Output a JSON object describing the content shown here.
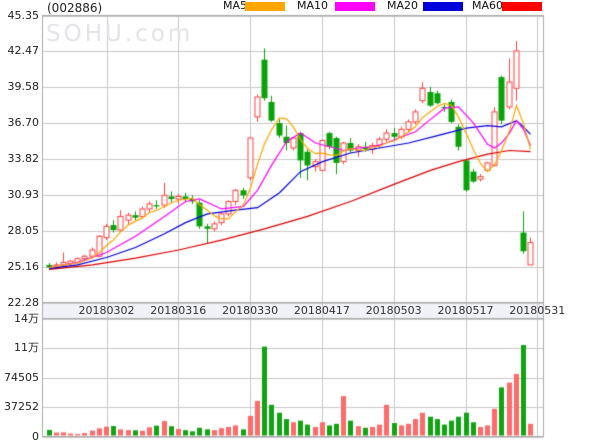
{
  "title": {
    "code": "(002886)"
  },
  "watermark": "SOHU.com",
  "legend": [
    {
      "label": "MA5",
      "color": "#ffa500"
    },
    {
      "label": "MA10",
      "color": "#ff00ff"
    },
    {
      "label": "MA20",
      "color": "#0000dd"
    },
    {
      "label": "MA60",
      "color": "#ff0000"
    }
  ],
  "chart_data": {
    "type": "candlestick+volume",
    "title": "(002886)",
    "price_axis": {
      "ticks": [
        "45.35",
        "42.47",
        "39.58",
        "36.70",
        "33.82",
        "30.93",
        "28.05",
        "25.16",
        "22.28"
      ],
      "max": 45.35,
      "min": 22.28
    },
    "volume_axis": {
      "ticks": [
        "14万",
        "11万",
        "74505",
        "37252",
        "0"
      ],
      "max": 149008,
      "min": 0
    },
    "dates": [
      "20180302",
      "20180316",
      "20180330",
      "20180417",
      "20180503",
      "20180517",
      "20180531"
    ],
    "grid": true,
    "candles_format": [
      "open",
      "high",
      "low",
      "close",
      "volume"
    ],
    "candles": [
      [
        25.3,
        25.45,
        24.9,
        25.1,
        8300
      ],
      [
        25.1,
        25.5,
        25.0,
        25.3,
        5000
      ],
      [
        25.2,
        26.3,
        25.1,
        25.5,
        5200
      ],
      [
        25.4,
        25.7,
        25.2,
        25.6,
        3700
      ],
      [
        25.5,
        25.9,
        25.4,
        25.8,
        3000
      ],
      [
        25.8,
        26.1,
        25.6,
        26.0,
        4500
      ],
      [
        26.0,
        26.7,
        25.9,
        26.5,
        7400
      ],
      [
        26.0,
        27.7,
        25.9,
        27.6,
        10300
      ],
      [
        27.5,
        28.6,
        27.3,
        28.4,
        12400
      ],
      [
        28.5,
        28.9,
        27.9,
        28.1,
        13200
      ],
      [
        28.1,
        29.7,
        28.0,
        29.2,
        9000
      ],
      [
        28.9,
        29.5,
        28.6,
        29.3,
        8100
      ],
      [
        29.3,
        29.6,
        28.9,
        29.1,
        7800
      ],
      [
        29.2,
        30.0,
        29.0,
        29.8,
        7200
      ],
      [
        29.8,
        30.4,
        29.5,
        30.2,
        11600
      ],
      [
        30.1,
        30.5,
        29.8,
        30.0,
        13700
      ],
      [
        30.1,
        31.9,
        29.9,
        30.9,
        19500
      ],
      [
        30.8,
        31.2,
        30.3,
        30.6,
        13000
      ],
      [
        30.6,
        31.0,
        30.2,
        30.8,
        9500
      ],
      [
        30.8,
        31.1,
        30.4,
        30.6,
        8000
      ],
      [
        30.6,
        30.9,
        30.2,
        30.4,
        6500
      ],
      [
        30.3,
        30.5,
        28.2,
        28.4,
        11000
      ],
      [
        28.4,
        28.6,
        27.0,
        28.2,
        9000
      ],
      [
        28.2,
        28.8,
        28.0,
        28.6,
        8000
      ],
      [
        28.7,
        29.5,
        28.5,
        29.4,
        10500
      ],
      [
        29.4,
        30.5,
        29.2,
        30.4,
        12000
      ],
      [
        30.4,
        31.4,
        30.1,
        31.3,
        14000
      ],
      [
        31.3,
        31.5,
        30.6,
        30.9,
        9000
      ],
      [
        32.3,
        35.6,
        32.1,
        35.5,
        26000
      ],
      [
        37.2,
        39.0,
        36.8,
        38.8,
        45000
      ],
      [
        41.8,
        42.7,
        38.5,
        38.7,
        113500
      ],
      [
        38.4,
        38.9,
        36.8,
        36.9,
        40000
      ],
      [
        36.7,
        37.0,
        35.5,
        35.7,
        30000
      ],
      [
        35.6,
        36.5,
        34.5,
        35.1,
        22000
      ],
      [
        34.7,
        35.6,
        34.5,
        35.5,
        18000
      ],
      [
        35.9,
        36.0,
        32.3,
        33.7,
        20000
      ],
      [
        34.4,
        34.6,
        32.1,
        33.3,
        15000
      ],
      [
        33.2,
        33.8,
        32.8,
        33.6,
        12000
      ],
      [
        32.9,
        35.4,
        32.8,
        35.3,
        18000
      ],
      [
        35.9,
        36.0,
        34.6,
        34.8,
        14000
      ],
      [
        35.5,
        35.6,
        32.6,
        33.5,
        16000
      ],
      [
        33.6,
        35.2,
        33.4,
        35.1,
        51000
      ],
      [
        35.1,
        35.5,
        34.3,
        34.5,
        20000
      ],
      [
        34.5,
        35.0,
        34.0,
        34.8,
        13000
      ],
      [
        34.8,
        35.2,
        34.4,
        34.6,
        11000
      ],
      [
        34.6,
        35.1,
        34.2,
        34.9,
        12000
      ],
      [
        34.9,
        35.6,
        34.7,
        35.4,
        15000
      ],
      [
        35.4,
        36.2,
        35.2,
        35.9,
        40000
      ],
      [
        35.9,
        36.3,
        35.3,
        35.6,
        17000
      ],
      [
        35.6,
        36.4,
        35.4,
        36.2,
        14000
      ],
      [
        36.2,
        37.0,
        36.0,
        36.8,
        16000
      ],
      [
        36.8,
        37.8,
        36.6,
        37.6,
        22000
      ],
      [
        38.5,
        40.0,
        38.3,
        39.5,
        30000
      ],
      [
        39.2,
        39.6,
        38.0,
        38.1,
        25000
      ],
      [
        39.1,
        39.3,
        38.2,
        38.3,
        22000
      ],
      [
        38.0,
        38.2,
        37.6,
        37.9,
        15000
      ],
      [
        38.4,
        38.6,
        36.7,
        36.8,
        20000
      ],
      [
        36.4,
        36.6,
        34.5,
        34.8,
        25000
      ],
      [
        33.7,
        33.8,
        31.2,
        31.3,
        30000
      ],
      [
        32.8,
        33.0,
        31.9,
        32.0,
        18000
      ],
      [
        32.2,
        32.6,
        32.0,
        32.4,
        12000
      ],
      [
        32.9,
        33.6,
        32.8,
        33.5,
        14000
      ],
      [
        33.3,
        38.0,
        33.2,
        37.6,
        35000
      ],
      [
        40.4,
        40.5,
        36.6,
        36.9,
        62000
      ],
      [
        38.0,
        41.9,
        37.8,
        40.0,
        68000
      ],
      [
        39.5,
        43.3,
        38.5,
        42.5,
        79000
      ],
      [
        27.9,
        29.6,
        26.2,
        26.4,
        115500
      ],
      [
        25.3,
        27.5,
        25.3,
        27.1,
        16000
      ]
    ],
    "ma_series": {
      "MA10": [
        [
          0,
          25.1
        ],
        [
          4,
          25.5
        ],
        [
          8,
          26.3
        ],
        [
          12,
          27.6
        ],
        [
          16,
          29.2
        ],
        [
          19,
          30.4
        ],
        [
          21,
          30.6
        ],
        [
          24,
          29.8
        ],
        [
          27,
          30.0
        ],
        [
          29,
          31.3
        ],
        [
          31,
          33.3
        ],
        [
          33,
          35.2
        ],
        [
          35,
          35.9
        ],
        [
          37,
          35.1
        ],
        [
          39,
          34.8
        ],
        [
          41,
          34.5
        ],
        [
          43,
          34.7
        ],
        [
          45,
          34.8
        ],
        [
          47,
          35.1
        ],
        [
          49,
          35.6
        ],
        [
          51,
          36.0
        ],
        [
          53,
          37.0
        ],
        [
          55,
          37.9
        ],
        [
          57,
          38.0
        ],
        [
          59,
          36.7
        ],
        [
          61,
          35.0
        ],
        [
          62,
          34.7
        ],
        [
          63,
          35.1
        ],
        [
          64,
          35.9
        ],
        [
          65,
          36.9
        ],
        [
          66,
          36.2
        ],
        [
          67,
          34.9
        ]
      ],
      "MA20": [
        [
          0,
          25.0
        ],
        [
          4,
          25.3
        ],
        [
          8,
          25.9
        ],
        [
          12,
          26.7
        ],
        [
          16,
          27.8
        ],
        [
          19,
          28.7
        ],
        [
          22,
          29.4
        ],
        [
          26,
          29.7
        ],
        [
          29,
          29.9
        ],
        [
          32,
          31.1
        ],
        [
          35,
          32.8
        ],
        [
          38,
          33.6
        ],
        [
          42,
          34.3
        ],
        [
          46,
          34.7
        ],
        [
          50,
          35.1
        ],
        [
          54,
          35.7
        ],
        [
          58,
          36.3
        ],
        [
          61,
          36.5
        ],
        [
          63,
          36.4
        ],
        [
          65,
          36.9
        ],
        [
          66,
          36.4
        ],
        [
          67,
          35.8
        ]
      ],
      "MA60": [
        [
          0,
          24.95
        ],
        [
          6,
          25.3
        ],
        [
          12,
          25.85
        ],
        [
          18,
          26.5
        ],
        [
          24,
          27.3
        ],
        [
          30,
          28.2
        ],
        [
          36,
          29.2
        ],
        [
          42,
          30.4
        ],
        [
          48,
          31.8
        ],
        [
          53,
          32.9
        ],
        [
          57,
          33.6
        ],
        [
          61,
          34.2
        ],
        [
          64,
          34.5
        ],
        [
          67,
          34.4
        ]
      ]
    },
    "colors": {
      "up_candle": "#ff4444",
      "down_candle": "#09a309",
      "up_volume": "#ff6a6a",
      "down_volume": "#12a312",
      "ma5": "#ffa500",
      "ma10": "#ff00ff",
      "ma20": "#0000dd",
      "ma60": "#e00000",
      "grid": "#c8c8c8",
      "border": "#aaaaaa",
      "date_band_bg": "#f1f2f8"
    },
    "legend_position": "top"
  }
}
